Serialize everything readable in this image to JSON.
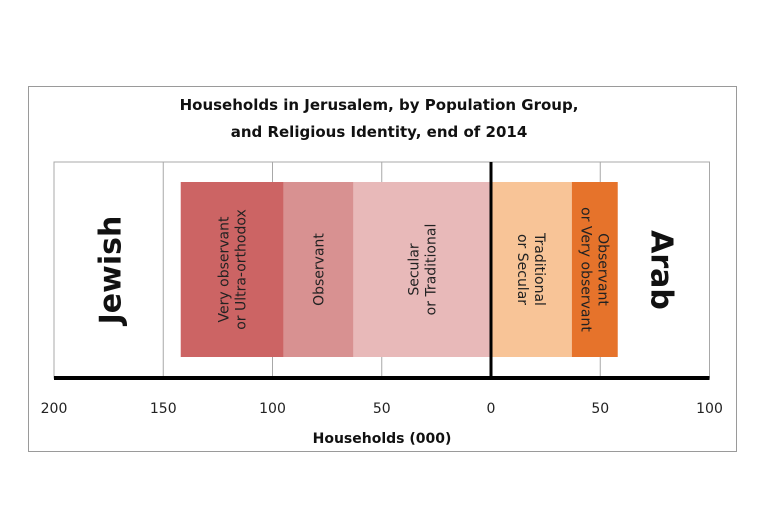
{
  "chart_data": {
    "type": "bar",
    "orientation": "horizontal-stacked-diverging",
    "title": [
      "Households in Jerusalem, by Population Group,",
      "and Religious Identity, end of 2014"
    ],
    "xlabel": "Households (000)",
    "xlim_left": [
      0,
      200
    ],
    "xlim_right": [
      0,
      100
    ],
    "tick_labels": [
      "200",
      "150",
      "100",
      "50",
      "0",
      "50",
      "100"
    ],
    "grid": true,
    "groups": [
      {
        "name": "Jewish",
        "side": "left",
        "segments": [
          {
            "label": "Secular\nor Traditional",
            "value": 63,
            "color": "#e8b9b9"
          },
          {
            "label": "Observant",
            "value": 32,
            "color": "#d89191"
          },
          {
            "label": "Very observant\nor Ultra-orthodox",
            "value": 47,
            "color": "#cc6464"
          }
        ]
      },
      {
        "name": "Arab",
        "side": "right",
        "segments": [
          {
            "label": "Traditional\nor Secular",
            "value": 37,
            "color": "#f8c497"
          },
          {
            "label": "Observant\nor Very observant",
            "value": 21,
            "color": "#e6732b"
          }
        ]
      }
    ]
  }
}
